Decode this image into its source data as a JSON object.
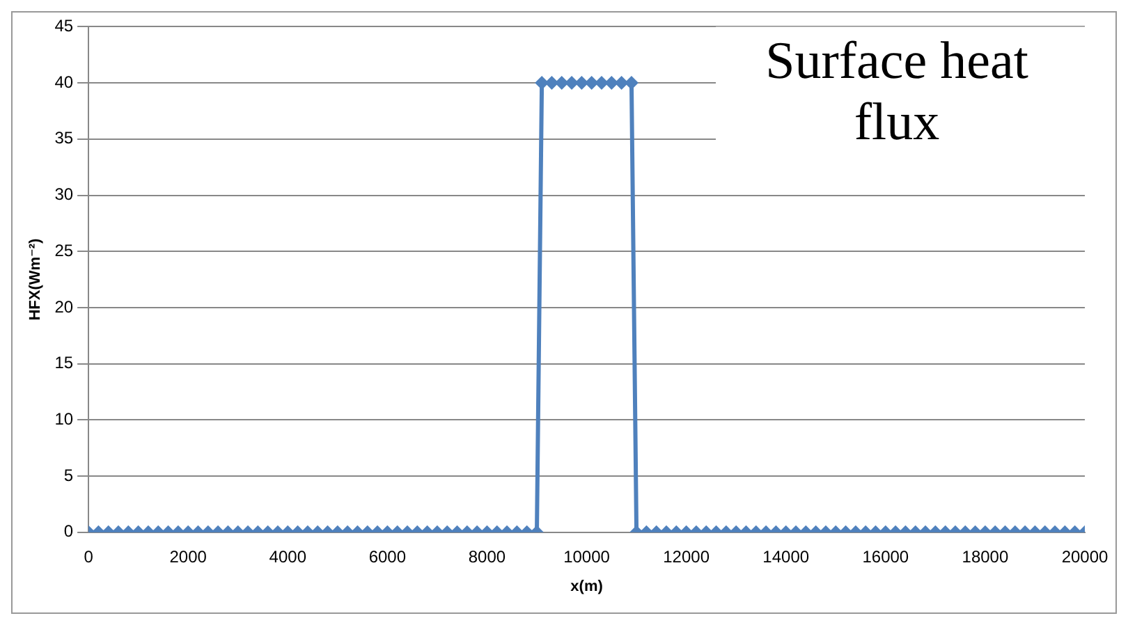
{
  "chart_data": {
    "type": "line",
    "title": "Surface heat flux",
    "xlabel": "x(m)",
    "ylabel": "HFX(Wm⁻²)",
    "xlim": [
      0,
      20000
    ],
    "xticks": [
      0,
      2000,
      4000,
      6000,
      8000,
      10000,
      12000,
      14000,
      16000,
      18000,
      20000
    ],
    "ylim": [
      0,
      45
    ],
    "yticks": [
      0,
      5,
      10,
      15,
      20,
      25,
      30,
      35,
      40,
      45
    ],
    "grid": "y",
    "legend": false,
    "marker": "diamond",
    "line_style": "solid",
    "series": [
      {
        "color": "#4f81bd",
        "x": [
          0,
          200,
          400,
          600,
          800,
          1000,
          1200,
          1400,
          1600,
          1800,
          2000,
          2200,
          2400,
          2600,
          2800,
          3000,
          3200,
          3400,
          3600,
          3800,
          4000,
          4200,
          4400,
          4600,
          4800,
          5000,
          5200,
          5400,
          5600,
          5800,
          6000,
          6200,
          6400,
          6600,
          6800,
          7000,
          7200,
          7400,
          7600,
          7800,
          8000,
          8200,
          8400,
          8600,
          8800,
          9000,
          9100,
          9300,
          9500,
          9700,
          9900,
          10100,
          10300,
          10500,
          10700,
          10900,
          11000,
          11200,
          11400,
          11600,
          11800,
          12000,
          12200,
          12400,
          12600,
          12800,
          13000,
          13200,
          13400,
          13600,
          13800,
          14000,
          14200,
          14400,
          14600,
          14800,
          15000,
          15200,
          15400,
          15600,
          15800,
          16000,
          16200,
          16400,
          16600,
          16800,
          17000,
          17200,
          17400,
          17600,
          17800,
          18000,
          18200,
          18400,
          18600,
          18800,
          19000,
          19200,
          19400,
          19600,
          19800,
          20000
        ],
        "values": [
          0,
          0,
          0,
          0,
          0,
          0,
          0,
          0,
          0,
          0,
          0,
          0,
          0,
          0,
          0,
          0,
          0,
          0,
          0,
          0,
          0,
          0,
          0,
          0,
          0,
          0,
          0,
          0,
          0,
          0,
          0,
          0,
          0,
          0,
          0,
          0,
          0,
          0,
          0,
          0,
          0,
          0,
          0,
          0,
          0,
          0,
          40,
          40,
          40,
          40,
          40,
          40,
          40,
          40,
          40,
          40,
          0,
          0,
          0,
          0,
          0,
          0,
          0,
          0,
          0,
          0,
          0,
          0,
          0,
          0,
          0,
          0,
          0,
          0,
          0,
          0,
          0,
          0,
          0,
          0,
          0,
          0,
          0,
          0,
          0,
          0,
          0,
          0,
          0,
          0,
          0,
          0,
          0,
          0,
          0,
          0,
          0,
          0,
          0,
          0,
          0,
          0
        ]
      }
    ]
  }
}
